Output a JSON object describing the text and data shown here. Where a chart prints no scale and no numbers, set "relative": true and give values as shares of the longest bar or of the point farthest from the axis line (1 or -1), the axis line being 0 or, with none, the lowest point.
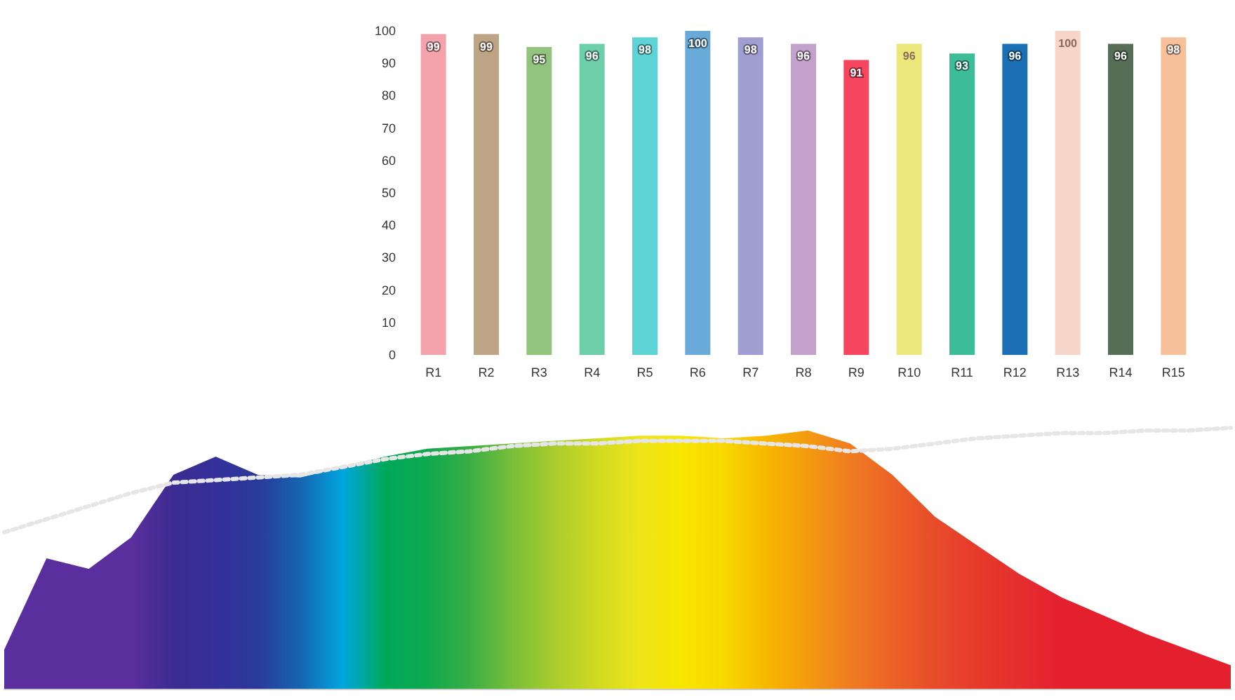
{
  "chart_data": [
    {
      "type": "bar",
      "categories": [
        "R1",
        "R2",
        "R3",
        "R4",
        "R5",
        "R6",
        "R7",
        "R8",
        "R9",
        "R10",
        "R11",
        "R12",
        "R13",
        "R14",
        "R15"
      ],
      "values": [
        99,
        99,
        95,
        96,
        98,
        100,
        98,
        96,
        91,
        96,
        93,
        96,
        100,
        96,
        98
      ],
      "colors": [
        "#f4a3ad",
        "#bca484",
        "#93c47d",
        "#6ccfa9",
        "#5dd3d6",
        "#6aaad8",
        "#a09ed0",
        "#c4a0cc",
        "#f5455f",
        "#ece77a",
        "#3dbc98",
        "#1a6fb5",
        "#f5d6c8",
        "#556e55",
        "#f5c09a"
      ],
      "ylim": [
        0,
        100
      ],
      "yticks": [
        0,
        10,
        20,
        30,
        40,
        50,
        60,
        70,
        80,
        90,
        100
      ],
      "grid": false,
      "data_labels": true
    },
    {
      "type": "area",
      "relative": true,
      "categories": [
        null,
        null,
        null,
        null,
        null,
        null,
        null,
        null,
        null,
        null,
        null,
        null,
        null,
        null,
        null,
        null,
        null,
        null,
        null,
        null,
        null,
        null,
        null,
        null,
        null,
        null,
        null,
        null,
        null,
        null
      ],
      "grid": false,
      "series": [
        {
          "values": [
            0.15,
            0.5,
            0.46,
            0.58,
            0.82,
            0.89,
            0.82,
            0.81,
            0.85,
            0.89,
            0.92,
            0.93,
            0.94,
            0.95,
            0.96,
            0.97,
            0.97,
            0.96,
            0.97,
            0.99,
            0.94,
            0.82,
            0.66,
            0.55,
            0.44,
            0.35,
            0.28,
            0.21,
            0.15,
            0.09
          ],
          "colors": [
            "#5b2e9e",
            "#5b2e9e",
            "#5b2e9e",
            "#5b2e9e",
            "#3b2c92",
            "#35309a",
            "#2a3a9a",
            "#1565b0",
            "#00a6de",
            "#00a85a",
            "#0fa84e",
            "#3aae45",
            "#78be3a",
            "#a9cc2e",
            "#d0da22",
            "#eee41a",
            "#f7e600",
            "#f8d800",
            "#f7b800",
            "#f49a10",
            "#f07c22",
            "#ec6226",
            "#e84c2a",
            "#e63a2b",
            "#e52e2e",
            "#e4202e",
            "#e4202e",
            "#e4202e",
            "#e4202e",
            "#e4202e"
          ]
        },
        {
          "type": "line",
          "line_style": "dotted",
          "marker": "none",
          "color": "#e6e6e6",
          "values": [
            0.6,
            0.65,
            0.7,
            0.75,
            0.79,
            0.8,
            0.81,
            0.82,
            0.85,
            0.88,
            0.9,
            0.91,
            0.93,
            0.94,
            0.94,
            0.95,
            0.95,
            0.95,
            0.94,
            0.93,
            0.91,
            0.92,
            0.94,
            0.96,
            0.97,
            0.98,
            0.98,
            0.99,
            0.99,
            1.0
          ]
        }
      ]
    }
  ]
}
